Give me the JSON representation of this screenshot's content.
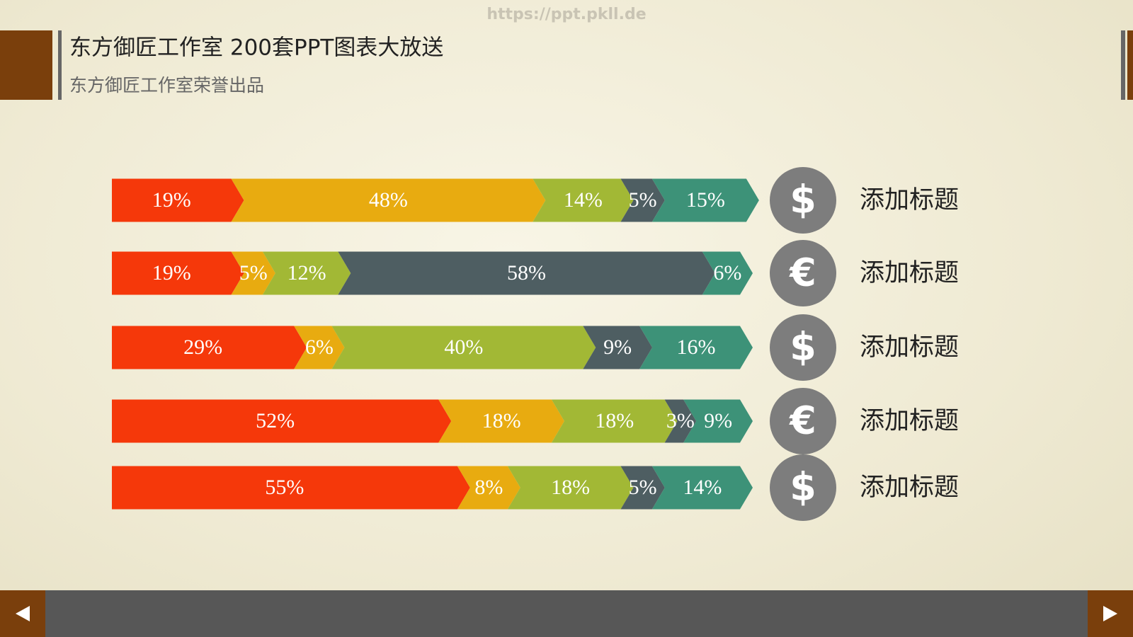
{
  "watermark": "https://ppt.pkll.de",
  "header": {
    "title": "东方御匠工作室 200套PPT图表大放送",
    "subtitle": "东方御匠工作室荣誉出品"
  },
  "chart_data": {
    "type": "stacked_bar",
    "categories": [
      "添加标题",
      "添加标题",
      "添加标题",
      "添加标题",
      "添加标题"
    ],
    "icons": [
      "$",
      "€",
      "$",
      "€",
      "$"
    ],
    "series": [
      {
        "color": "#f5380a",
        "values": [
          19,
          19,
          29,
          52,
          55
        ],
        "value_labels": [
          "19%",
          "19%",
          "29%",
          "52%",
          "55%"
        ]
      },
      {
        "color": "#e8ab10",
        "values": [
          48,
          5,
          6,
          18,
          8
        ],
        "value_labels": [
          "48%",
          "5%",
          "6%",
          "18%",
          "8%"
        ]
      },
      {
        "color": "#a2b835",
        "values": [
          14,
          12,
          40,
          18,
          18
        ],
        "value_labels": [
          "14%",
          "12%",
          "40%",
          "18%",
          "18%"
        ]
      },
      {
        "color": "#4e5e62",
        "values": [
          5,
          58,
          9,
          3,
          5
        ],
        "value_labels": [
          "5%",
          "58%",
          "9%",
          "3%",
          "5%"
        ]
      },
      {
        "color": "#3d9278",
        "values": [
          15,
          6,
          16,
          9,
          14
        ],
        "value_labels": [
          "15%",
          "6%",
          "16%",
          "9%",
          "14%"
        ]
      }
    ]
  }
}
